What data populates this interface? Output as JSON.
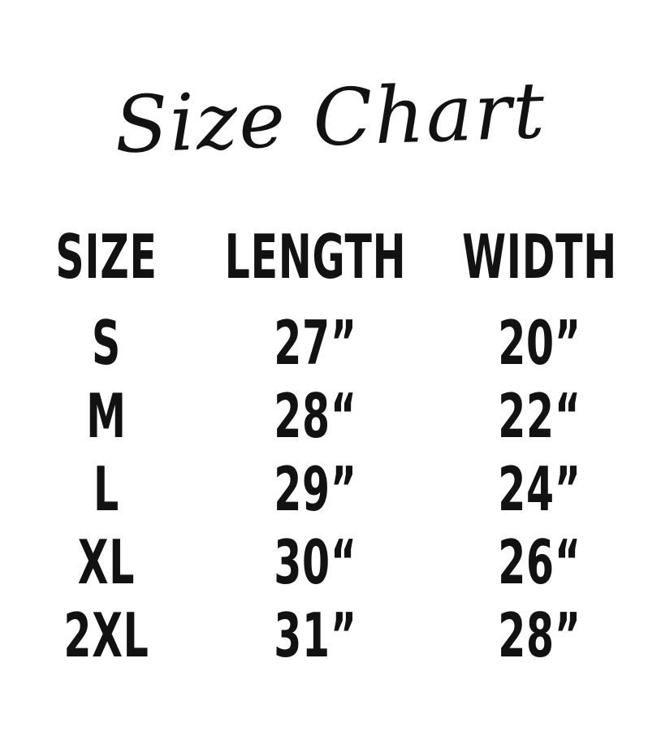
{
  "page": {
    "background_color": "#ffffff",
    "text_color": "#121212"
  },
  "title": "Size Chart",
  "table": {
    "columns": [
      "SIZE",
      "LENGTH",
      "WIDTH"
    ],
    "rows": [
      [
        "S",
        "27”",
        "20”"
      ],
      [
        "M",
        "28“",
        "22“"
      ],
      [
        "L",
        "29”",
        "24”"
      ],
      [
        "XL",
        "30“",
        "26“"
      ],
      [
        "2XL",
        "31”",
        "28”"
      ]
    ]
  },
  "chart_data": {
    "type": "table",
    "title": "Size Chart",
    "columns": [
      "SIZE",
      "LENGTH",
      "WIDTH"
    ],
    "units": "inches",
    "rows": [
      [
        "S",
        "27”",
        "20”"
      ],
      [
        "M",
        "28“",
        "22“"
      ],
      [
        "L",
        "29”",
        "24”"
      ],
      [
        "XL",
        "30“",
        "26“"
      ],
      [
        "2XL",
        "31”",
        "28”"
      ]
    ],
    "sizes": [
      "S",
      "M",
      "L",
      "XL",
      "2XL"
    ],
    "length_in": [
      27,
      28,
      29,
      30,
      31
    ],
    "width_in": [
      20,
      22,
      24,
      26,
      28
    ]
  }
}
